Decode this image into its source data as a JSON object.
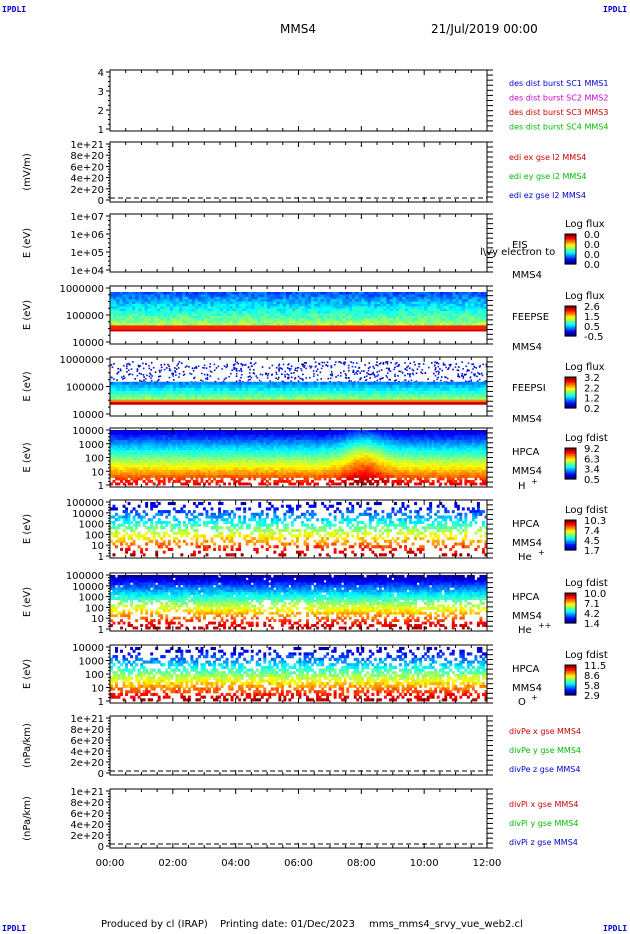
{
  "header": {
    "corner_label": "IPDLI",
    "spacecraft": "MMS4",
    "datetime": "21/Jul/2019 00:00"
  },
  "footer": {
    "produced_by": "Produced by cl (IRAP)",
    "printing_date": "Printing date: 01/Dec/2023",
    "script_name": "mms_mms4_srvy_vue_web2.cl"
  },
  "chart_data": {
    "type": "multi-panel time-series",
    "x_axis": {
      "range_hours": [
        0,
        12
      ],
      "tick_labels": [
        "00:00",
        "02:00",
        "04:00",
        "06:00",
        "08:00",
        "10:00",
        "12:00"
      ]
    },
    "panels": [
      {
        "id": "burst",
        "type": "line",
        "ylabel": "",
        "yticks": [
          "1",
          "2",
          "3",
          "4"
        ],
        "right_labels": [
          {
            "text": "des dist burst SC1 MMS1",
            "color": "#0000cc"
          },
          {
            "text": "des dist burst SC2 MMS2",
            "color": "#cc00cc"
          },
          {
            "text": "des dist burst SC3 MMS3",
            "color": "#cc0000"
          },
          {
            "text": "des dist burst SC4 MMS4",
            "color": "#00bb00"
          }
        ]
      },
      {
        "id": "edi",
        "type": "line",
        "ylabel": "(mV/m)",
        "yticks": [
          "0",
          "2e+20",
          "4e+20",
          "6e+20",
          "8e+20",
          "1e+21"
        ],
        "zero_line": true,
        "right_labels": [
          {
            "text": "edi ex gse l2 MMS4",
            "color": "#cc0000"
          },
          {
            "text": "edi ey gse l2 MMS4",
            "color": "#00bb00"
          },
          {
            "text": "edi ez gse l2 MMS4",
            "color": "#0000cc"
          }
        ]
      },
      {
        "id": "eis",
        "type": "heatmap",
        "ylabel": "E (eV)",
        "yticks": [
          "1e+04",
          "1e+05",
          "1e+06",
          "1e+07"
        ],
        "log_scale": true,
        "instrument": "EIS",
        "spacecraft": "MMS4",
        "overlay_text": "l\\vy electron to",
        "colorbar": {
          "title": "Log flux",
          "values": [
            "0.0",
            "0.0",
            "0.0",
            "0.0"
          ]
        },
        "has_data": false
      },
      {
        "id": "feepse",
        "type": "heatmap",
        "ylabel": "E (eV)",
        "yticks": [
          "10000",
          "100000",
          "1000000"
        ],
        "log_scale": true,
        "instrument": "FEEPSE",
        "spacecraft": "MMS4",
        "colorbar": {
          "title": "Log flux",
          "values": [
            "2.6",
            "1.5",
            "0.5",
            "-0.5"
          ]
        }
      },
      {
        "id": "feepsi",
        "type": "heatmap",
        "ylabel": "E (eV)",
        "yticks": [
          "10000",
          "100000",
          "1000000"
        ],
        "log_scale": true,
        "instrument": "FEEPSI",
        "spacecraft": "MMS4",
        "colorbar": {
          "title": "Log flux",
          "values": [
            "3.2",
            "2.2",
            "1.2",
            "0.2"
          ]
        }
      },
      {
        "id": "hpca_h",
        "type": "heatmap",
        "ylabel": "E (eV)",
        "yticks": [
          "1",
          "10",
          "100",
          "1000",
          "10000"
        ],
        "log_scale": true,
        "instrument": "HPCA",
        "spacecraft": "MMS4",
        "species": "H",
        "species_sup": "+",
        "colorbar": {
          "title": "Log fdist",
          "values": [
            "9.2",
            "6.3",
            "3.4",
            "0.5"
          ]
        }
      },
      {
        "id": "hpca_he1",
        "type": "heatmap",
        "ylabel": "E (eV)",
        "yticks": [
          "1",
          "10",
          "100",
          "1000",
          "10000",
          "100000"
        ],
        "log_scale": true,
        "instrument": "HPCA",
        "spacecraft": "MMS4",
        "species": "He",
        "species_sup": "+",
        "colorbar": {
          "title": "Log fdist",
          "values": [
            "10.3",
            "7.4",
            "4.5",
            "1.7"
          ]
        }
      },
      {
        "id": "hpca_he2",
        "type": "heatmap",
        "ylabel": "E (eV)",
        "yticks": [
          "1",
          "10",
          "100",
          "1000",
          "10000",
          "100000"
        ],
        "log_scale": true,
        "instrument": "HPCA",
        "spacecraft": "MMS4",
        "species": "He",
        "species_sup": "++",
        "colorbar": {
          "title": "Log fdist",
          "values": [
            "10.0",
            "7.1",
            "4.2",
            "1.4"
          ]
        }
      },
      {
        "id": "hpca_o",
        "type": "heatmap",
        "ylabel": "E (eV)",
        "yticks": [
          "1",
          "10",
          "100",
          "1000",
          "10000"
        ],
        "log_scale": true,
        "instrument": "HPCA",
        "spacecraft": "MMS4",
        "species": "O",
        "species_sup": "+",
        "colorbar": {
          "title": "Log fdist",
          "values": [
            "11.5",
            "8.6",
            "5.8",
            "2.9"
          ]
        }
      },
      {
        "id": "divpe",
        "type": "line",
        "ylabel": "(nPa/km)",
        "yticks": [
          "0",
          "2e+20",
          "4e+20",
          "6e+20",
          "8e+20",
          "1e+21"
        ],
        "zero_line": true,
        "right_labels": [
          {
            "text": "divPe x gse MMS4",
            "color": "#cc0000"
          },
          {
            "text": "divPe y gse MMS4",
            "color": "#00bb00"
          },
          {
            "text": "divPe z gse MMS4",
            "color": "#0000cc"
          }
        ]
      },
      {
        "id": "divpi",
        "type": "line",
        "ylabel": "(nPa/km)",
        "yticks": [
          "0",
          "2e+20",
          "4e+20",
          "6e+20",
          "8e+20",
          "1e+21"
        ],
        "zero_line": true,
        "right_labels": [
          {
            "text": "divPi x gse MMS4",
            "color": "#cc0000"
          },
          {
            "text": "divPi y gse MMS4",
            "color": "#00bb00"
          },
          {
            "text": "divPi z gse MMS4",
            "color": "#0000cc"
          }
        ]
      }
    ]
  }
}
